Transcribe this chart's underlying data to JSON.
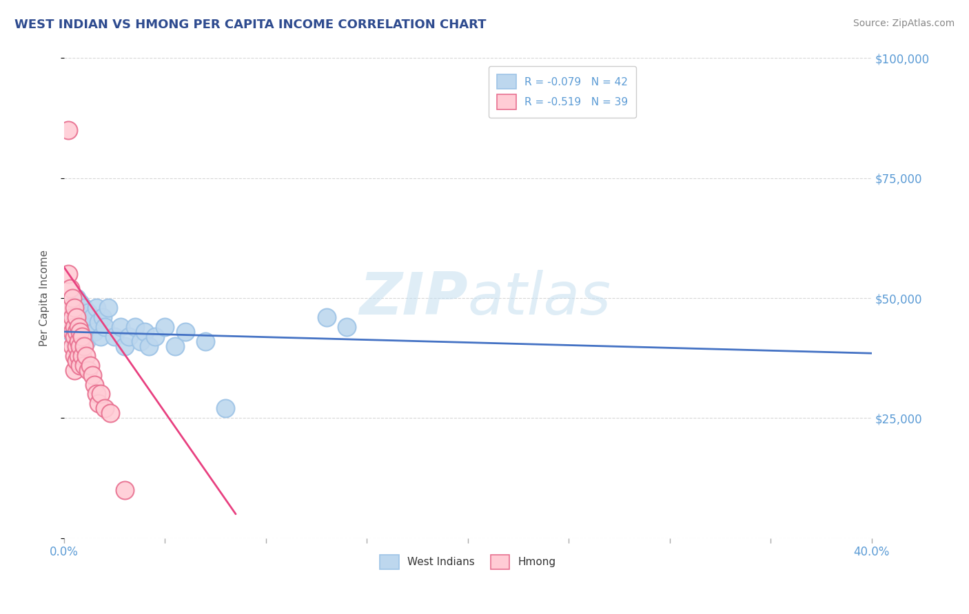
{
  "title": "WEST INDIAN VS HMONG PER CAPITA INCOME CORRELATION CHART",
  "source": "Source: ZipAtlas.com",
  "ylabel": "Per Capita Income",
  "xlim": [
    0.0,
    0.4
  ],
  "ylim": [
    0,
    100000
  ],
  "xticks": [
    0.0,
    0.05,
    0.1,
    0.15,
    0.2,
    0.25,
    0.3,
    0.35,
    0.4
  ],
  "xticklabels": [
    "0.0%",
    "",
    "",
    "",
    "",
    "",
    "",
    "",
    "40.0%"
  ],
  "yticks": [
    0,
    25000,
    50000,
    75000,
    100000
  ],
  "yticklabels": [
    "",
    "$25,000",
    "$50,000",
    "$75,000",
    "$100,000"
  ],
  "title_color": "#2E4B8F",
  "axis_color": "#5B9BD5",
  "ylabel_color": "#555555",
  "source_color": "#888888",
  "west_indians_color": "#BDD7EE",
  "west_indians_edge": "#9DC3E6",
  "hmong_color": "#FFCCD5",
  "hmong_edge": "#E87090",
  "blue_line_color": "#4472C4",
  "pink_line_color": "#E84080",
  "legend_r1": "R = -0.079",
  "legend_n1": "N = 42",
  "legend_r2": "R = -0.519",
  "legend_n2": "N = 39",
  "west_indians_x": [
    0.003,
    0.004,
    0.005,
    0.005,
    0.006,
    0.006,
    0.007,
    0.007,
    0.008,
    0.008,
    0.009,
    0.009,
    0.01,
    0.01,
    0.011,
    0.011,
    0.012,
    0.013,
    0.014,
    0.015,
    0.016,
    0.017,
    0.018,
    0.019,
    0.02,
    0.022,
    0.025,
    0.028,
    0.03,
    0.032,
    0.035,
    0.038,
    0.04,
    0.042,
    0.045,
    0.05,
    0.055,
    0.06,
    0.07,
    0.08,
    0.13,
    0.14
  ],
  "west_indians_y": [
    43000,
    46000,
    48000,
    41000,
    50000,
    44000,
    47000,
    42000,
    49000,
    43000,
    46000,
    40000,
    48000,
    43000,
    45000,
    41000,
    47000,
    44000,
    46000,
    43000,
    48000,
    45000,
    42000,
    46000,
    44000,
    48000,
    42000,
    44000,
    40000,
    42000,
    44000,
    41000,
    43000,
    40000,
    42000,
    44000,
    40000,
    43000,
    41000,
    27000,
    46000,
    44000
  ],
  "hmong_x": [
    0.002,
    0.002,
    0.003,
    0.003,
    0.003,
    0.004,
    0.004,
    0.004,
    0.004,
    0.005,
    0.005,
    0.005,
    0.005,
    0.005,
    0.006,
    0.006,
    0.006,
    0.006,
    0.007,
    0.007,
    0.007,
    0.008,
    0.008,
    0.008,
    0.009,
    0.009,
    0.01,
    0.01,
    0.011,
    0.012,
    0.013,
    0.014,
    0.015,
    0.016,
    0.017,
    0.018,
    0.02,
    0.023,
    0.03
  ],
  "hmong_y": [
    85000,
    55000,
    52000,
    48000,
    44000,
    50000,
    46000,
    43000,
    40000,
    48000,
    44000,
    42000,
    38000,
    35000,
    46000,
    43000,
    40000,
    37000,
    44000,
    41000,
    38000,
    43000,
    40000,
    36000,
    42000,
    38000,
    40000,
    36000,
    38000,
    35000,
    36000,
    34000,
    32000,
    30000,
    28000,
    30000,
    27000,
    26000,
    10000
  ],
  "blue_trend_x": [
    0.0,
    0.4
  ],
  "blue_trend_y": [
    43000,
    38500
  ],
  "pink_trend_x": [
    -0.001,
    0.085
  ],
  "pink_trend_y": [
    57000,
    5000
  ],
  "watermark_zip": "ZIP",
  "watermark_atlas": "atlas",
  "background_color": "#FFFFFF",
  "grid_color": "#CCCCCC",
  "bottom_legend_labels": [
    "West Indians",
    "Hmong"
  ]
}
